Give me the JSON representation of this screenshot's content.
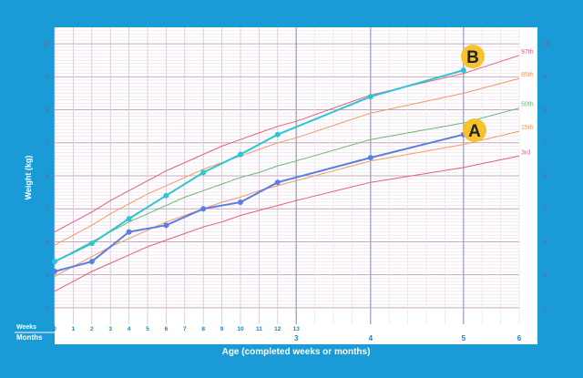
{
  "chart_data": {
    "type": "line",
    "xlabel": "Age (completed weeks or months)",
    "ylabel": "Weight (kg)",
    "row_labels": {
      "weeks": "Weeks",
      "months": "Months"
    },
    "ylim": [
      1.5,
      10.5
    ],
    "y_ticks": [
      "2",
      "3",
      "4",
      "5",
      "6",
      "7",
      "8",
      "9",
      "10"
    ],
    "week_ticks": [
      "0",
      "1",
      "2",
      "3",
      "4",
      "5",
      "6",
      "7",
      "8",
      "9",
      "10",
      "11",
      "12",
      "13"
    ],
    "month_ticks": [
      "3",
      "4",
      "5",
      "6"
    ],
    "grid": true,
    "percentiles": [
      {
        "name": "97th",
        "color": "#e2607a",
        "values": [
          4.3,
          4.6,
          4.9,
          5.25,
          5.55,
          5.85,
          6.15,
          6.4,
          6.65,
          6.9,
          7.1,
          7.3,
          7.5,
          7.65,
          8.45,
          9.1,
          9.65
        ]
      },
      {
        "name": "85th",
        "color": "#f09a63",
        "values": [
          3.9,
          4.2,
          4.5,
          4.85,
          5.15,
          5.45,
          5.7,
          5.95,
          6.2,
          6.4,
          6.6,
          6.8,
          7.0,
          7.15,
          7.9,
          8.5,
          8.95
        ]
      },
      {
        "name": "50th",
        "color": "#68b872",
        "values": [
          3.4,
          3.7,
          4.0,
          4.3,
          4.6,
          4.85,
          5.1,
          5.35,
          5.55,
          5.75,
          5.95,
          6.1,
          6.3,
          6.45,
          7.1,
          7.6,
          8.05
        ]
      },
      {
        "name": "15th",
        "color": "#f09a63",
        "values": [
          2.95,
          3.25,
          3.55,
          3.85,
          4.1,
          4.35,
          4.6,
          4.8,
          5.0,
          5.2,
          5.35,
          5.55,
          5.7,
          5.85,
          6.45,
          6.95,
          7.35
        ]
      },
      {
        "name": "3rd",
        "color": "#e2607a",
        "values": [
          2.5,
          2.8,
          3.1,
          3.35,
          3.6,
          3.85,
          4.05,
          4.25,
          4.45,
          4.6,
          4.8,
          4.95,
          5.1,
          5.25,
          5.8,
          6.25,
          6.6
        ]
      }
    ],
    "series": [
      {
        "name": "B",
        "color": "#2ec4d6",
        "x": [
          0,
          2,
          4,
          6,
          8,
          10,
          12,
          17,
          22
        ],
        "y": [
          3.4,
          3.95,
          4.7,
          5.4,
          6.1,
          6.65,
          7.25,
          8.4,
          9.2
        ]
      },
      {
        "name": "A",
        "color": "#5b7fe0",
        "x": [
          0,
          2,
          4,
          6,
          8,
          10,
          12,
          17,
          22
        ],
        "y": [
          3.1,
          3.4,
          4.3,
          4.5,
          5.0,
          5.2,
          5.8,
          6.55,
          7.25
        ]
      }
    ],
    "badge_color": "#f6c32e"
  }
}
